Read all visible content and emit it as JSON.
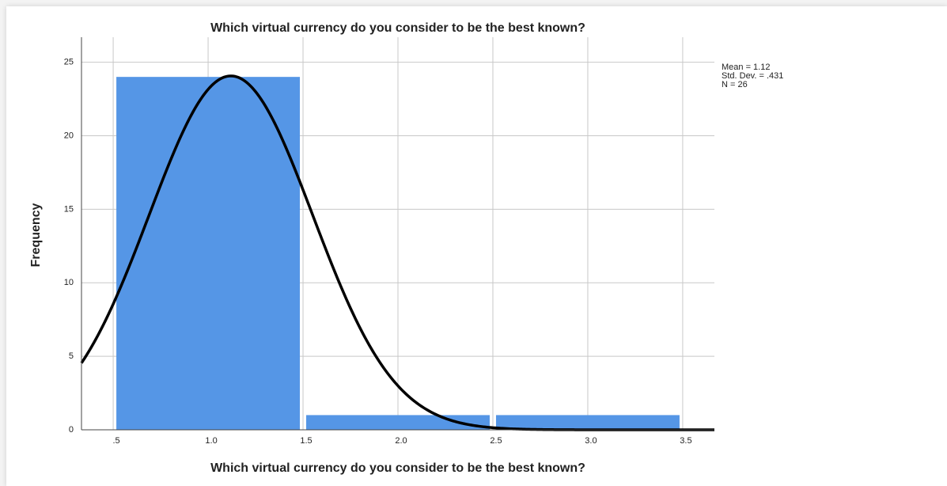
{
  "chart_data": {
    "type": "histogram",
    "title": "Which virtual currency do you consider to be the best known?",
    "xlabel": "Which virtual currency do you consider to be the best known?",
    "ylabel": "Frequency",
    "bins": [
      0.5,
      1.5,
      2.5,
      3.5
    ],
    "counts": [
      24,
      1,
      1
    ],
    "color": "#5596e6",
    "curve_color": "#000000",
    "xlim": [
      0.333,
      3.667
    ],
    "ylim": [
      0,
      26.7
    ],
    "xticks": [
      {
        "value": 0.5,
        "label": ".5"
      },
      {
        "value": 1,
        "label": "1.0"
      },
      1.5,
      {
        "value": 2,
        "label": "2.0"
      },
      2.5,
      {
        "value": 3,
        "label": "3.0"
      },
      3.5
    ],
    "yticks": [
      0,
      5,
      10,
      15,
      20,
      25
    ],
    "grid": true,
    "stats": [
      {
        "value": 1.12,
        "label": "Mean = 1.12"
      },
      {
        "value": 0.431,
        "label": "Std. Dev. = .431"
      },
      {
        "value": 26,
        "label": "N = 26"
      }
    ]
  }
}
